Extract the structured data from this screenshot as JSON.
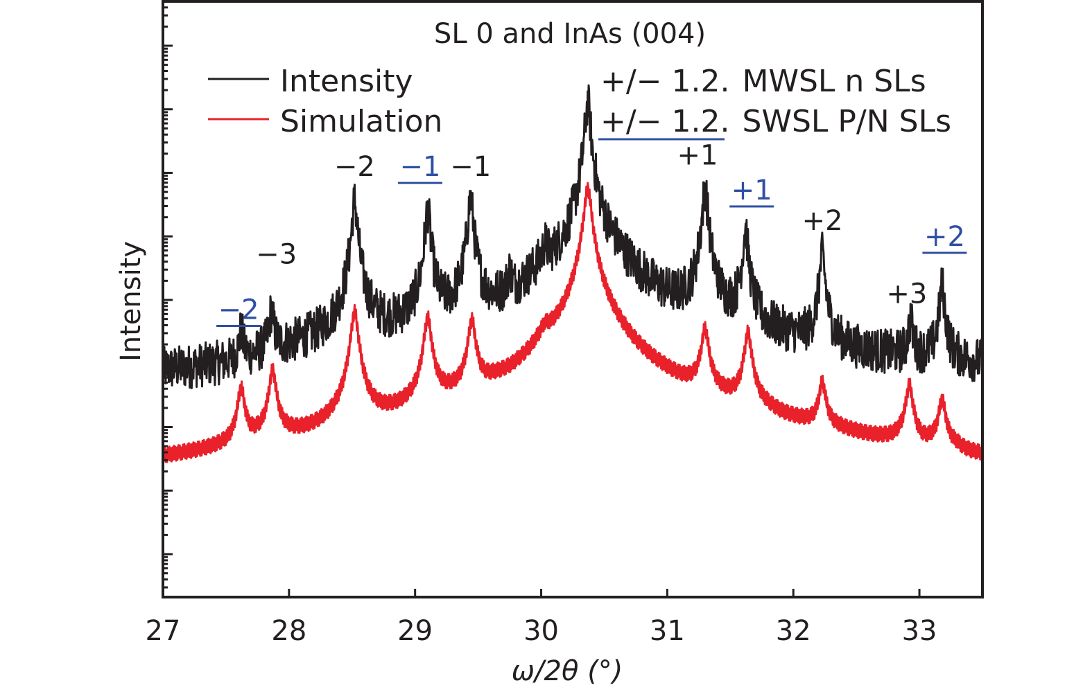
{
  "chart_data": {
    "type": "line",
    "title": "SL 0  and InAs (004)",
    "xlabel": "ω/2θ (°)",
    "ylabel": "Intensity",
    "xlim": [
      27,
      33.5
    ],
    "ylim_log10": [
      -0.68,
      8.7
    ],
    "y_scale": "log",
    "y_tick_labels_shown": false,
    "y_major_ticks_log10": [
      0,
      1,
      2,
      3,
      4,
      5,
      6,
      7,
      8
    ],
    "x_ticks": [
      27,
      28,
      29,
      30,
      31,
      32,
      33
    ],
    "x_tick_labels": [
      "27",
      "28",
      "29",
      "30",
      "31",
      "32",
      "33"
    ],
    "grid": false,
    "legend": {
      "placement": "top-left",
      "entries": [
        {
          "label": "Intensity",
          "color": "#231f20"
        },
        {
          "label": "Simulation",
          "color": "#e8212b"
        }
      ]
    },
    "series": [
      {
        "name": "Intensity",
        "color": "#231f20",
        "baseline_log10": [
          [
            27.0,
            2.55
          ],
          [
            27.6,
            2.55
          ],
          [
            27.9,
            2.9
          ],
          [
            28.4,
            3.1
          ],
          [
            28.6,
            3.15
          ],
          [
            29.4,
            3.25
          ],
          [
            29.75,
            3.4
          ],
          [
            30.0,
            4.1
          ],
          [
            30.2,
            3.85
          ],
          [
            30.6,
            4.2
          ],
          [
            31.0,
            3.4
          ],
          [
            31.5,
            3.1
          ],
          [
            32.0,
            2.9
          ],
          [
            32.5,
            2.75
          ],
          [
            33.0,
            2.75
          ],
          [
            33.5,
            2.75
          ]
        ],
        "noise_log10": 0.35,
        "peaks": [
          {
            "x": 27.62,
            "log10_peak": 3.4
          },
          {
            "x": 27.86,
            "log10_peak": 3.75
          },
          {
            "x": 28.52,
            "log10_peak": 5.55
          },
          {
            "x": 29.1,
            "log10_peak": 5.4
          },
          {
            "x": 29.44,
            "log10_peak": 5.6
          },
          {
            "x": 29.75,
            "log10_peak": 4.25
          },
          {
            "x": 30.03,
            "log10_peak": 4.65
          },
          {
            "x": 30.37,
            "log10_peak": 7.1
          },
          {
            "x": 31.3,
            "log10_peak": 5.75
          },
          {
            "x": 31.62,
            "log10_peak": 5.1
          },
          {
            "x": 32.23,
            "log10_peak": 4.7
          },
          {
            "x": 32.93,
            "log10_peak": 3.6
          },
          {
            "x": 33.18,
            "log10_peak": 4.2
          }
        ]
      },
      {
        "name": "Simulation",
        "color": "#e8212b",
        "baseline_log10": [
          [
            27.0,
            0.0
          ],
          [
            27.3,
            0.0
          ],
          [
            27.55,
            0.5
          ],
          [
            27.75,
            1.0
          ],
          [
            28.0,
            0.8
          ],
          [
            28.2,
            0.0
          ],
          [
            28.3,
            -0.1
          ],
          [
            28.45,
            0.5
          ],
          [
            28.8,
            1.0
          ],
          [
            28.9,
            1.2
          ],
          [
            29.2,
            1.6
          ],
          [
            29.35,
            1.5
          ],
          [
            29.55,
            1.3
          ],
          [
            29.65,
            1.45
          ],
          [
            29.72,
            0.9
          ],
          [
            29.75,
            0.35
          ],
          [
            29.8,
            1.5
          ],
          [
            30.03,
            3.2
          ],
          [
            30.2,
            2.1
          ],
          [
            30.22,
            1.9
          ],
          [
            30.3,
            2.9
          ],
          [
            30.5,
            2.45
          ],
          [
            30.6,
            2.2
          ],
          [
            30.75,
            1.3
          ],
          [
            30.9,
            1.05
          ],
          [
            31.1,
            1.1
          ],
          [
            31.25,
            1.8
          ],
          [
            31.45,
            1.4
          ],
          [
            31.55,
            1.5
          ],
          [
            31.8,
            1.2
          ],
          [
            31.95,
            0.35
          ],
          [
            32.1,
            0.5
          ],
          [
            32.35,
            0.7
          ],
          [
            32.6,
            0.2
          ],
          [
            32.75,
            0.6
          ],
          [
            32.85,
            1.1
          ],
          [
            33.03,
            0.65
          ],
          [
            33.1,
            1.0
          ],
          [
            33.3,
            0.9
          ],
          [
            33.4,
            0.0
          ],
          [
            33.5,
            -0.8
          ]
        ],
        "fringe_log10": 0.12,
        "peaks": [
          {
            "x": 27.62,
            "log10_peak": 2.55
          },
          {
            "x": 27.87,
            "log10_peak": 2.85
          },
          {
            "x": 28.52,
            "log10_peak": 3.8
          },
          {
            "x": 29.1,
            "log10_peak": 3.7
          },
          {
            "x": 29.45,
            "log10_peak": 3.65
          },
          {
            "x": 30.37,
            "log10_peak": 5.75
          },
          {
            "x": 31.3,
            "log10_peak": 3.5
          },
          {
            "x": 31.64,
            "log10_peak": 3.45
          },
          {
            "x": 32.23,
            "log10_peak": 2.6
          },
          {
            "x": 32.92,
            "log10_peak": 2.6
          },
          {
            "x": 33.18,
            "log10_peak": 2.35
          }
        ]
      }
    ],
    "annotations": [
      {
        "id": "mwsl-m3",
        "text": "−3",
        "x": 27.9,
        "log10_y": 4.57,
        "color": "#231f20",
        "underline": false
      },
      {
        "id": "swsl-m2",
        "text": "−2",
        "x": 27.6,
        "log10_y": 3.7,
        "color": "#2e4fa3",
        "underline": true
      },
      {
        "id": "mwsl-m2",
        "text": "−2",
        "x": 28.52,
        "log10_y": 5.95,
        "color": "#231f20",
        "underline": false
      },
      {
        "id": "swsl-m1",
        "text": "−1",
        "x": 29.04,
        "log10_y": 5.95,
        "color": "#2e4fa3",
        "underline": true
      },
      {
        "id": "mwsl-m1",
        "text": "−1",
        "x": 29.44,
        "log10_y": 5.95,
        "color": "#231f20",
        "underline": false
      },
      {
        "id": "mwsl-p1",
        "text": "+1",
        "x": 31.24,
        "log10_y": 6.13,
        "color": "#231f20",
        "underline": false
      },
      {
        "id": "swsl-p1",
        "text": "+1",
        "x": 31.67,
        "log10_y": 5.58,
        "color": "#2e4fa3",
        "underline": true
      },
      {
        "id": "mwsl-p2",
        "text": "+2",
        "x": 32.23,
        "log10_y": 5.1,
        "color": "#231f20",
        "underline": false
      },
      {
        "id": "mwsl-p3",
        "text": "+3",
        "x": 32.9,
        "log10_y": 3.95,
        "color": "#231f20",
        "underline": false
      },
      {
        "id": "swsl-p2",
        "text": "+2",
        "x": 33.2,
        "log10_y": 4.85,
        "color": "#2e4fa3",
        "underline": true
      }
    ],
    "key_notes": [
      {
        "id": "note-mwsl",
        "prefix": "+/− 1.2.",
        "label": "MWSL n SLs",
        "color": "#231f20",
        "underline_prefix": false
      },
      {
        "id": "note-swsl",
        "prefix": "+/− 1.2.",
        "label": "SWSL P/N SLs",
        "color": "#2e4fa3",
        "underline_prefix": true
      }
    ]
  }
}
